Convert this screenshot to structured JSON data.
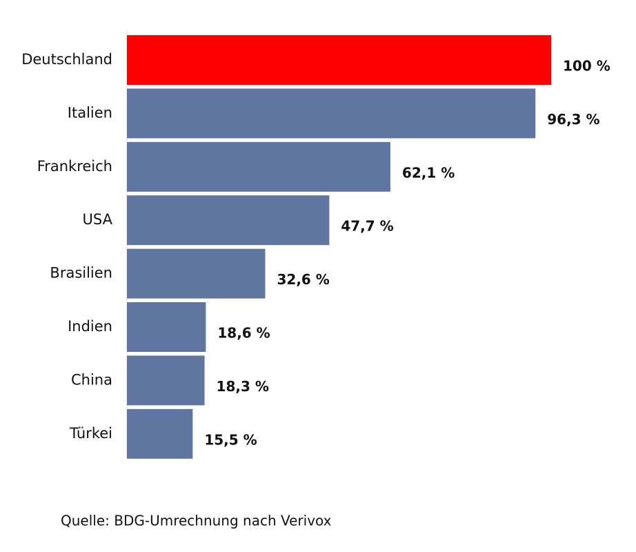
{
  "chart_data": {
    "type": "bar",
    "orientation": "horizontal",
    "categories": [
      "Deutschland",
      "Italien",
      "Frankreich",
      "USA",
      "Brasilien",
      "Indien",
      "China",
      "Türkei"
    ],
    "values": [
      100,
      96.3,
      62.1,
      47.7,
      32.6,
      18.6,
      18.3,
      15.5
    ],
    "value_labels": [
      "100 %",
      "96,3 %",
      "62,1 %",
      "47,7 %",
      "32,6 %",
      "18,6 %",
      "18,3 %",
      "15,5 %"
    ],
    "colors": [
      "#ff0000",
      "#6076a0",
      "#6076a0",
      "#6076a0",
      "#6076a0",
      "#6076a0",
      "#6076a0",
      "#6076a0"
    ],
    "xlim": [
      0,
      100
    ],
    "source": "Quelle: BDG-Umrechnung nach Verivox"
  }
}
